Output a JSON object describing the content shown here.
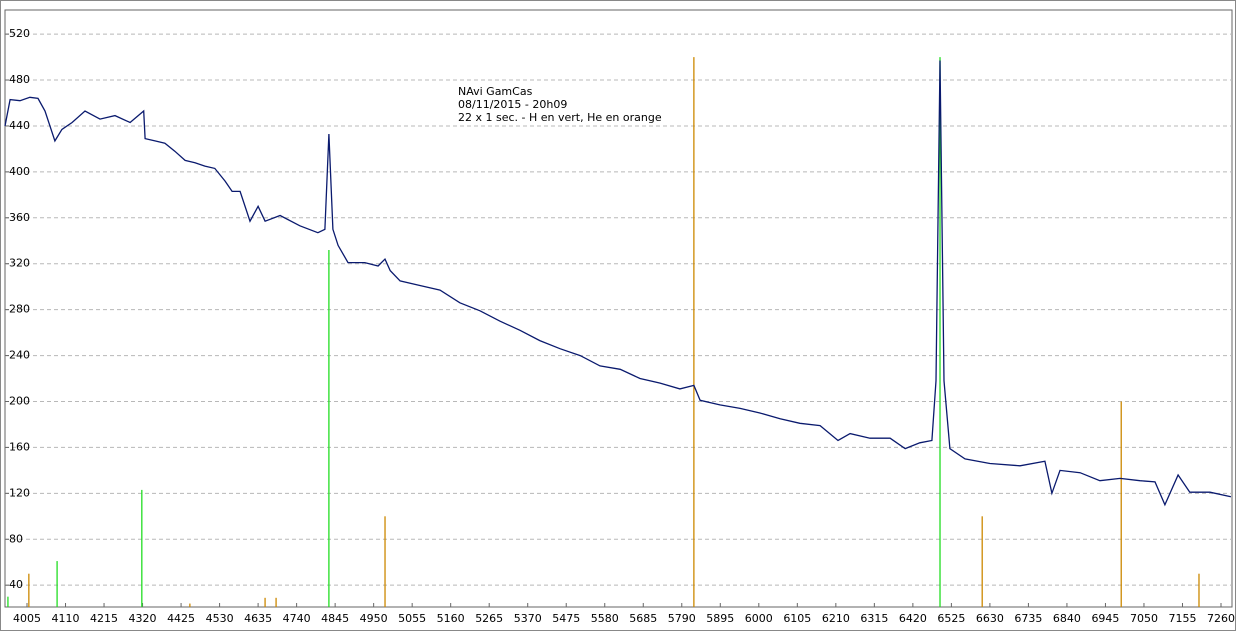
{
  "chart_data": {
    "type": "line",
    "annotation": [
      "NAvi GamCas",
      "08/11/2015 - 20h09",
      "22 x 1 sec. - H en vert, He en orange"
    ],
    "xlim": [
      3945,
      7290
    ],
    "ylim": [
      21,
      541
    ],
    "xticks": [
      4005,
      4110,
      4215,
      4320,
      4425,
      4530,
      4635,
      4740,
      4845,
      4950,
      5055,
      5160,
      5265,
      5370,
      5475,
      5580,
      5685,
      5790,
      5895,
      6000,
      6105,
      6210,
      6315,
      6420,
      6525,
      6630,
      6735,
      6840,
      6945,
      7050,
      7155,
      7260
    ],
    "yticks": [
      40,
      80,
      120,
      160,
      200,
      240,
      280,
      320,
      360,
      400,
      440,
      480,
      520
    ],
    "grid": true,
    "series": [
      {
        "type": "line",
        "color": "#0a1a6e",
        "x": [
          3945,
          3959,
          3986,
          4013,
          4035,
          4054,
          4081,
          4100,
          4128,
          4163,
          4204,
          4245,
          4286,
          4323,
          4327,
          4354,
          4381,
          4408,
          4436,
          4463,
          4490,
          4517,
          4545,
          4564,
          4586,
          4613,
          4635,
          4654,
          4695,
          4749,
          4798,
          4817,
          4828,
          4839,
          4853,
          4880,
          4926,
          4962,
          4981,
          4995,
          5022,
          5076,
          5131,
          5185,
          5240,
          5294,
          5349,
          5403,
          5458,
          5513,
          5567,
          5622,
          5676,
          5731,
          5785,
          5823,
          5840,
          5894,
          5949,
          6003,
          6058,
          6112,
          6167,
          6216,
          6249,
          6303,
          6358,
          6399,
          6439,
          6472,
          6483,
          6494,
          6505,
          6521,
          6562,
          6630,
          6712,
          6780,
          6799,
          6821,
          6876,
          6930,
          6985,
          7039,
          7080,
          7107,
          7143,
          7175,
          7230,
          7287
        ],
        "values": [
          440,
          463,
          462,
          465,
          464,
          453,
          427,
          437,
          443,
          453,
          446,
          449,
          443,
          453,
          429,
          427,
          425,
          418,
          410,
          408,
          405,
          403,
          392,
          383,
          383,
          357,
          370,
          357,
          362,
          353,
          347,
          350,
          433,
          350,
          336,
          321,
          321,
          318,
          324,
          314,
          305,
          301,
          297,
          286,
          279,
          270,
          262,
          253,
          246,
          240,
          231,
          228,
          220,
          216,
          211,
          214,
          201,
          197,
          194,
          190,
          185,
          181,
          179,
          166,
          172,
          168,
          168,
          159,
          164,
          166,
          218,
          497,
          218,
          159,
          150,
          146,
          144,
          148,
          120,
          140,
          138,
          131,
          133,
          131,
          130,
          110,
          136,
          121,
          121,
          117
        ]
      },
      {
        "type": "stem",
        "color": "#22dd22",
        "x": [
          3953,
          4087,
          4318,
          4828,
          6494
        ],
        "values": [
          30,
          61,
          123,
          332,
          500
        ]
      },
      {
        "type": "stem",
        "color": "#cc8800",
        "x": [
          4010,
          4449,
          4654,
          4684,
          4981,
          5823,
          6609,
          6988,
          7200
        ],
        "values": [
          50,
          24,
          29,
          29,
          100,
          500,
          100,
          200,
          50
        ]
      }
    ]
  }
}
